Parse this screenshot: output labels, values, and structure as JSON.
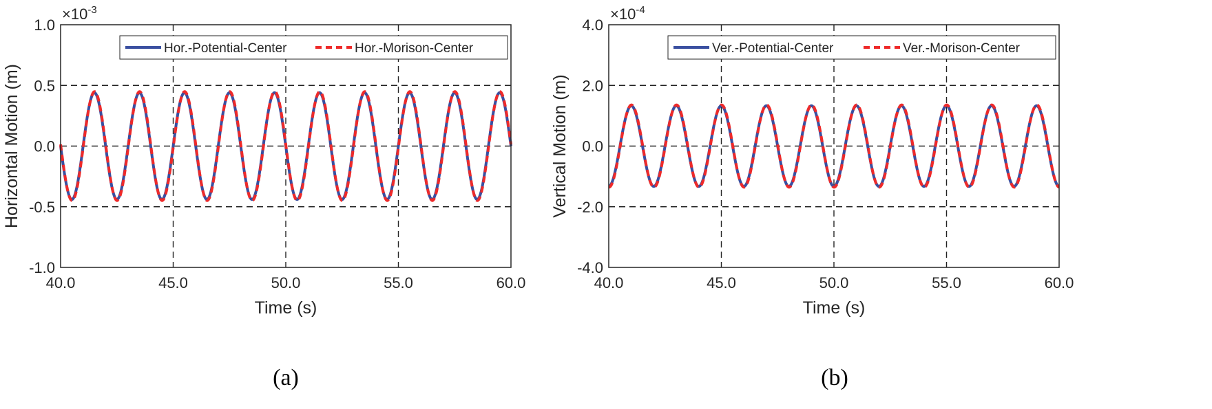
{
  "chart_data": [
    {
      "type": "line",
      "panel_label": "(a)",
      "xlabel": "Time (s)",
      "ylabel": "Horizontal Motion (m)",
      "exponent_base": "×10",
      "exponent_power": "-3",
      "xlim": [
        40.0,
        60.0
      ],
      "ylim": [
        -1.0,
        1.0
      ],
      "x_ticks": [
        "40.0",
        "45.0",
        "50.0",
        "55.0",
        "60.0"
      ],
      "y_ticks": [
        "-1.0",
        "-0.5",
        "0.0",
        "0.5",
        "1.0"
      ],
      "grid": "dashed at tick positions",
      "legend_position": "top-right",
      "signal": {
        "amplitude": 0.44,
        "period": 2.0,
        "phase_ref_time": 41.5,
        "shape": "sine",
        "unit_scale": 0.001
      },
      "series": [
        {
          "name": "Hor.-Potential-Center",
          "style": "solid",
          "color": "#3a4fa0",
          "values_note": "peaks +0.44 at t=41.5,43.5,...; troughs -0.44 at t=40.5,42.5,..."
        },
        {
          "name": "Hor.-Morison-Center",
          "style": "dashed",
          "color": "#ee2a2a"
        }
      ]
    },
    {
      "type": "line",
      "panel_label": "(b)",
      "xlabel": "Time (s)",
      "ylabel": "Vertical Motion (m)",
      "exponent_base": "×10",
      "exponent_power": "-4",
      "xlim": [
        40.0,
        60.0
      ],
      "ylim": [
        -4.0,
        4.0
      ],
      "x_ticks": [
        "40.0",
        "45.0",
        "50.0",
        "55.0",
        "60.0"
      ],
      "y_ticks": [
        "-4.0",
        "-2.0",
        "0.0",
        "2.0",
        "4.0"
      ],
      "grid": "dashed at tick positions",
      "legend_position": "top-right",
      "signal": {
        "amplitude": 1.33,
        "period": 2.0,
        "phase_ref_time": 41.0,
        "shape": "sine",
        "unit_scale": 0.0001
      },
      "series": [
        {
          "name": "Ver.-Potential-Center",
          "style": "solid",
          "color": "#3a4fa0"
        },
        {
          "name": "Ver.-Morison-Center",
          "style": "dashed",
          "color": "#ee2a2a"
        }
      ]
    }
  ]
}
